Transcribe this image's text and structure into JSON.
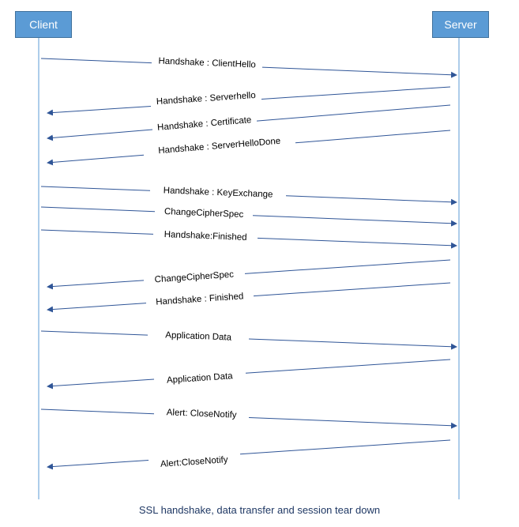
{
  "actors": {
    "client": "Client",
    "server": "Server"
  },
  "messages": [
    {
      "label": "Handshake : ClientHello",
      "from": "client",
      "to": "server"
    },
    {
      "label": "Handshake : Serverhello",
      "from": "server",
      "to": "client"
    },
    {
      "label": "Handshake : Certificate",
      "from": "server",
      "to": "client"
    },
    {
      "label": "Handshake : ServerHelloDone",
      "from": "server",
      "to": "client"
    },
    {
      "label": "Handshake : KeyExchange",
      "from": "client",
      "to": "server"
    },
    {
      "label": "ChangeCipherSpec",
      "from": "client",
      "to": "server"
    },
    {
      "label": "Handshake:Finished",
      "from": "client",
      "to": "server"
    },
    {
      "label": "ChangeCipherSpec",
      "from": "server",
      "to": "client"
    },
    {
      "label": "Handshake : Finished",
      "from": "server",
      "to": "client"
    },
    {
      "label": "Application Data",
      "from": "client",
      "to": "server"
    },
    {
      "label": "Application Data",
      "from": "server",
      "to": "client"
    },
    {
      "label": "Alert: CloseNotify",
      "from": "client",
      "to": "server"
    },
    {
      "label": "Alert:CloseNotify",
      "from": "server",
      "to": "client"
    }
  ],
  "caption": "SSL handshake, data transfer and session tear down",
  "colors": {
    "actor_fill": "#5b9bd5",
    "line": "#2f5597",
    "caption": "#1f3864",
    "spell_underline": "#c00000"
  }
}
